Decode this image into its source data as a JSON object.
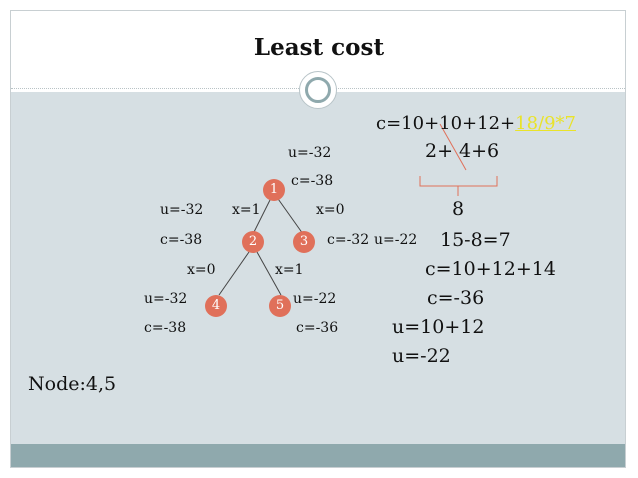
{
  "title": "Least cost",
  "tree": {
    "nodes": [
      "1",
      "2",
      "3",
      "4",
      "5"
    ],
    "edges": [
      [
        "1",
        "2"
      ],
      [
        "1",
        "3"
      ],
      [
        "2",
        "4"
      ],
      [
        "2",
        "5"
      ]
    ],
    "labels": {
      "u_root": "u=-32",
      "c_root": "c=-38",
      "u_left": "u=-32",
      "x1_left": "x=1",
      "x0_right": "x=0",
      "c_left": "c=-38",
      "c3": "c=-32",
      "u3": "u=-22",
      "x0_lower": "x=0",
      "x1_lower": "x=1",
      "u4": "u=-32",
      "c4": "c=-38",
      "u5": "u=-22",
      "c5": "c=-36"
    }
  },
  "calc": {
    "line1_prefix": "c=10+10+12+",
    "line1_highlight": "18/9*7",
    "line2": "2+ 4+6",
    "line3": "8",
    "line4": "15-8=7",
    "line5": "c=10+12+14",
    "line6": "c=-36",
    "line7": "u=10+12",
    "line8": "u=-22"
  },
  "node_text": "Node:4,5",
  "colors": {
    "node_fill": "#e0705a",
    "highlight": "#e9e32a",
    "content_bg": "#d6dfe3",
    "footer_bg": "#8fa9ad",
    "annotation": "#e0705a"
  }
}
